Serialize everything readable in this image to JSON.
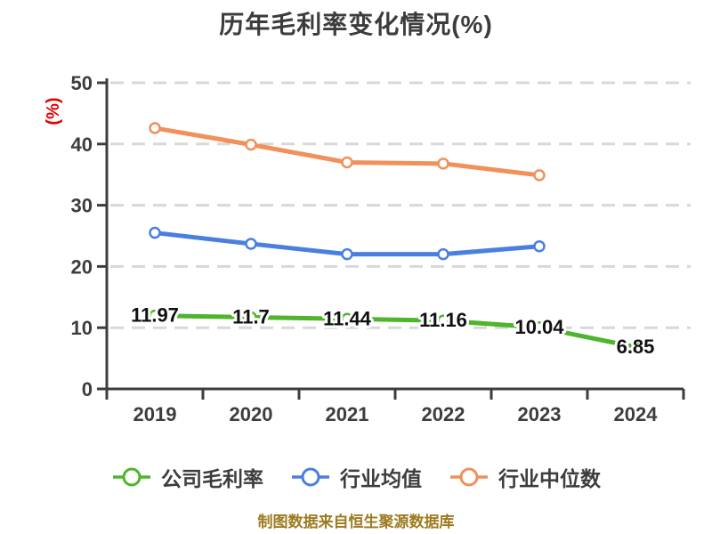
{
  "caption": "制图数据来自恒生聚源数据库",
  "colors": {
    "background": "#ffffff",
    "axis": "#3d3d3d",
    "grid": "#d8d8d8",
    "tick_text": "#3d3d3d",
    "title_text": "#3c3c3c",
    "ylabel_red": "#e60000",
    "data_label_text": "#111111",
    "data_label_halo": "#ffffff",
    "caption_gold": "#9c7a1e",
    "marker_fill": "#ffffff"
  },
  "chart_data": {
    "type": "line",
    "title": "历年毛利率变化情况(%)",
    "ylabel": "(%)",
    "xlabel": "",
    "categories": [
      "2019",
      "2020",
      "2021",
      "2022",
      "2023",
      "2024"
    ],
    "series": [
      {
        "id": "company-gross-margin",
        "name": "公司毛利率",
        "color": "#4eb52c",
        "values": [
          11.97,
          11.7,
          11.44,
          11.16,
          10.04,
          6.85
        ],
        "point_labels": [
          "11.97",
          "11.7",
          "11.44",
          "11.16",
          "10.04",
          "6.85"
        ],
        "show_point_labels": true
      },
      {
        "id": "industry-average",
        "name": "行业均值",
        "color": "#4b7fdf",
        "values": [
          25.5,
          23.7,
          22.0,
          22.0,
          23.3,
          null
        ],
        "show_point_labels": false
      },
      {
        "id": "industry-median",
        "name": "行业中位数",
        "color": "#f0905a",
        "values": [
          42.6,
          39.9,
          37.0,
          36.8,
          34.9,
          null
        ],
        "show_point_labels": false
      }
    ],
    "ylim": [
      0,
      50
    ],
    "yticks": [
      0,
      10,
      20,
      30,
      40,
      50
    ],
    "grid": "horizontal-dashed",
    "legend_position": "bottom",
    "marker": "circle-white-fill"
  }
}
